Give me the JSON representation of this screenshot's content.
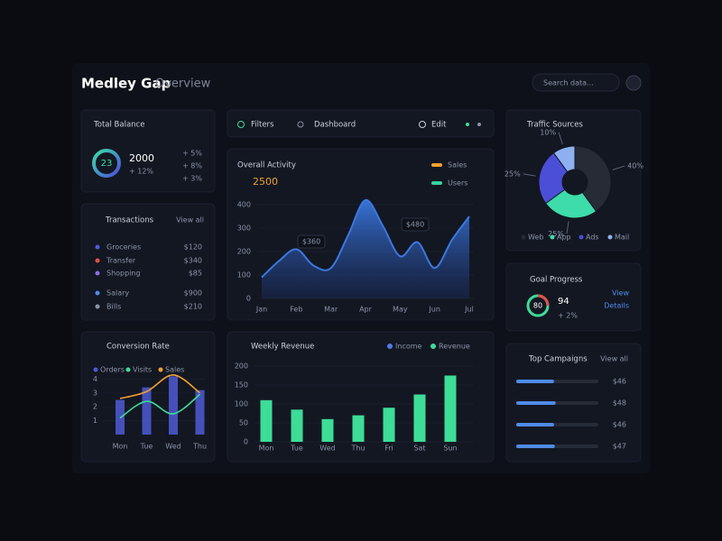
{
  "header": {
    "title": "Medley Gap",
    "subtitle": "Overview",
    "search": "Search data..."
  },
  "toolbar": {
    "items": [
      "Filters",
      "Dashboard",
      "Edit"
    ]
  },
  "summary_card": {
    "title": "Total Balance",
    "ring_value": 23,
    "amount": 2000,
    "note": "+ 12%",
    "stats": [
      "+ 5%",
      "+ 8%",
      "+ 3%"
    ]
  },
  "list_card": {
    "title": "Transactions",
    "link": "View all",
    "rows": [
      {
        "label": "Groceries",
        "value": "$120"
      },
      {
        "label": "Transfer",
        "value": "$340"
      },
      {
        "label": "Shopping",
        "value": "$85"
      },
      {
        "label": "Salary",
        "value": "$900"
      },
      {
        "label": "Bills",
        "value": "$210"
      }
    ]
  },
  "area_chart": {
    "type": "area",
    "title": "Overall Activity",
    "headline": 2500,
    "categories": [
      "Jan",
      null,
      "Feb",
      null,
      "Mar",
      null,
      "Apr",
      null,
      "May",
      null,
      "Jun",
      null,
      "Jul"
    ],
    "values": [
      90,
      160,
      210,
      140,
      130,
      270,
      420,
      310,
      180,
      240,
      130,
      250,
      350
    ],
    "ylim": [
      0,
      450
    ],
    "yticks": [
      0,
      100,
      200,
      300,
      400
    ],
    "color": "#3a78e0",
    "annotations": [
      "$360",
      "$480"
    ],
    "legend": [
      {
        "name": "Sales",
        "color": "#f0a030"
      },
      {
        "name": "Users",
        "color": "#3ad1a0"
      }
    ]
  },
  "bar_chart": {
    "type": "bar",
    "title": "Weekly Revenue",
    "categories": [
      "Mon",
      "Tue",
      "Wed",
      "Thu",
      "Fri",
      "Sat",
      "Sun"
    ],
    "values": [
      110,
      85,
      60,
      70,
      90,
      125,
      175
    ],
    "ylim": [
      0,
      200
    ],
    "yticks": [
      0,
      50,
      100,
      150,
      200
    ],
    "color": "#3ddc97",
    "legend": [
      {
        "name": "Income",
        "color": "#4f7be8"
      },
      {
        "name": "Revenue",
        "color": "#3ddc97"
      }
    ]
  },
  "pie_chart": {
    "type": "pie",
    "title": "Traffic Sources",
    "categories": [
      "Web",
      "App",
      "Ads",
      "Mail"
    ],
    "values": [
      40,
      25,
      25,
      10
    ],
    "value_labels": [
      "40%",
      "25%",
      "25%",
      "10%"
    ],
    "colors": [
      "#262b36",
      "#3ddcaa",
      "#4b4fd8",
      "#8fb0f0"
    ]
  },
  "gauge_card": {
    "title": "Goal Progress",
    "value": 80,
    "amount": 94,
    "note": "+ 2%",
    "links": [
      "View",
      "Details"
    ]
  },
  "combo_chart": {
    "type": "combo",
    "title": "Conversion Rate",
    "categories": [
      "Mon",
      "Tue",
      "Wed",
      "Thu"
    ],
    "ylim": [
      0,
      5
    ],
    "yticks": [
      1,
      2,
      3,
      4
    ],
    "series": [
      {
        "name": "Orders",
        "type": "bar",
        "color": "#4f5bd5",
        "values": [
          2.5,
          3.4,
          4.2,
          3.2
        ]
      },
      {
        "name": "Visits",
        "type": "line",
        "color": "#3ddc97",
        "values": [
          1.2,
          2.4,
          1.5,
          2.9
        ]
      },
      {
        "name": "Sales",
        "type": "line",
        "color": "#f0a030",
        "values": [
          2.6,
          3.1,
          4.3,
          3.0
        ]
      }
    ]
  },
  "progress_card": {
    "title": "Top Campaigns",
    "link": "View all",
    "xlim": [
      0,
      100
    ],
    "values": [
      46,
      48,
      46,
      47
    ],
    "value_labels": [
      "$46",
      "$48",
      "$46",
      "$47"
    ],
    "color": "#4f8be8"
  }
}
